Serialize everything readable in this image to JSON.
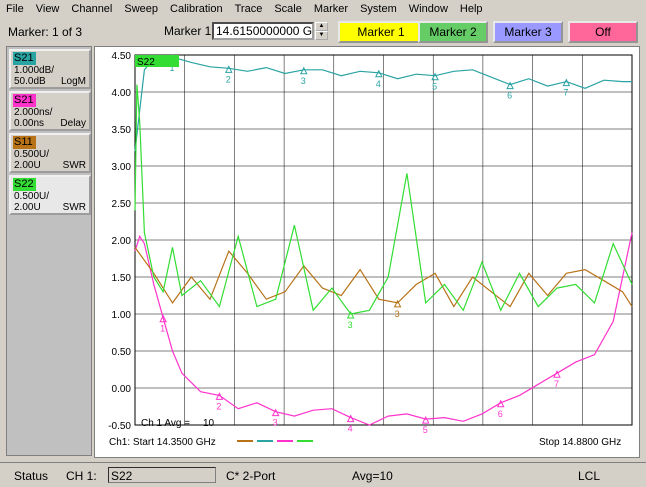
{
  "menu": [
    "File",
    "View",
    "Channel",
    "Sweep",
    "Calibration",
    "Trace",
    "Scale",
    "Marker",
    "System",
    "Window",
    "Help"
  ],
  "toolbar": {
    "marker_count": "Marker: 1 of 3",
    "marker_label": "Marker 1",
    "frequency": "14.6150000000 GHz",
    "buttons": [
      {
        "label": "Marker 1",
        "color": "#ffff00"
      },
      {
        "label": "Marker 2",
        "color": "#66cc66"
      },
      {
        "label": "Marker 3",
        "color": "#9999ff"
      },
      {
        "label": "Off",
        "color": "#ff6699"
      }
    ]
  },
  "traces": [
    {
      "name": "S21",
      "line1": "1.000dB/",
      "line2": "50.0dB",
      "format": "LogM",
      "color": "#2aa3a3"
    },
    {
      "name": "S21",
      "line1": "2.000ns/",
      "line2": "0.00ns",
      "format": "Delay",
      "color": "#ff33cc"
    },
    {
      "name": "S11",
      "line1": "0.500U/",
      "line2": "2.00U",
      "format": "SWR",
      "color": "#b87318"
    },
    {
      "name": "S22",
      "line1": "0.500U/",
      "line2": "2.00U",
      "format": "SWR",
      "color": "#33dd33"
    }
  ],
  "chart": {
    "y_ticks": [
      "4.50",
      "4.00",
      "3.50",
      "3.00",
      "2.50",
      "2.00",
      "1.50",
      "1.00",
      "0.50",
      "0.00",
      "-0.50"
    ],
    "active_trace_label": "S22",
    "avg_label": "Ch 1 Avg =",
    "avg_value": "10",
    "start_label": "Ch1: Start  14.3500 GHz",
    "stop_label": "Stop  14.8800 GHz",
    "legend_colors": [
      "#b87318",
      "#2aa3a3",
      "#ff33cc",
      "#33dd33"
    ]
  },
  "chart_data": {
    "type": "line",
    "xlabel": "",
    "ylabel": "",
    "xlim": [
      14.35,
      14.88
    ],
    "ylim": [
      -0.5,
      4.5
    ],
    "grid": true,
    "series": [
      {
        "name": "S21 LogM",
        "color": "#2aa3a3",
        "x": [
          14.35,
          14.36,
          14.37,
          14.38,
          14.39,
          14.41,
          14.43,
          14.45,
          14.47,
          14.49,
          14.51,
          14.53,
          14.55,
          14.57,
          14.59,
          14.61,
          14.63,
          14.65,
          14.67,
          14.69,
          14.71,
          14.73,
          14.75,
          14.77,
          14.79,
          14.81,
          14.83,
          14.85,
          14.87,
          14.88
        ],
        "y": [
          3.2,
          4.3,
          4.45,
          4.38,
          4.47,
          4.4,
          4.34,
          4.32,
          4.28,
          4.33,
          4.25,
          4.3,
          4.3,
          4.22,
          4.28,
          4.26,
          4.18,
          4.24,
          4.22,
          4.28,
          4.3,
          4.2,
          4.1,
          4.18,
          4.08,
          4.14,
          4.05,
          4.16,
          4.14,
          4.14
        ]
      },
      {
        "name": "S21 Delay",
        "color": "#ff33cc",
        "x": [
          14.35,
          14.355,
          14.36,
          14.37,
          14.38,
          14.39,
          14.4,
          14.42,
          14.44,
          14.46,
          14.48,
          14.5,
          14.52,
          14.54,
          14.56,
          14.58,
          14.6,
          14.62,
          14.64,
          14.66,
          14.68,
          14.7,
          14.72,
          14.74,
          14.76,
          14.78,
          14.8,
          14.82,
          14.84,
          14.86,
          14.88
        ],
        "y": [
          1.85,
          2.05,
          1.95,
          1.4,
          0.95,
          0.5,
          0.2,
          -0.05,
          -0.1,
          -0.28,
          -0.2,
          -0.32,
          -0.38,
          -0.3,
          -0.28,
          -0.4,
          -0.5,
          -0.38,
          -0.35,
          -0.42,
          -0.4,
          -0.45,
          -0.35,
          -0.2,
          -0.1,
          0.05,
          0.2,
          0.35,
          0.45,
          0.9,
          2.1
        ]
      },
      {
        "name": "S11 SWR",
        "color": "#b87318",
        "x": [
          14.35,
          14.37,
          14.39,
          14.41,
          14.43,
          14.45,
          14.47,
          14.49,
          14.51,
          14.53,
          14.55,
          14.57,
          14.59,
          14.61,
          14.63,
          14.65,
          14.67,
          14.69,
          14.71,
          14.73,
          14.75,
          14.77,
          14.79,
          14.81,
          14.83,
          14.85,
          14.87,
          14.88
        ],
        "y": [
          1.9,
          1.55,
          1.15,
          1.5,
          1.2,
          1.85,
          1.55,
          1.2,
          1.3,
          1.65,
          1.35,
          1.25,
          1.6,
          1.2,
          1.15,
          1.4,
          1.55,
          1.1,
          1.5,
          1.3,
          1.1,
          1.55,
          1.25,
          1.55,
          1.6,
          1.45,
          1.3,
          1.1
        ]
      },
      {
        "name": "S22 SWR",
        "color": "#33dd33",
        "x": [
          14.35,
          14.352,
          14.355,
          14.36,
          14.37,
          14.38,
          14.39,
          14.4,
          14.42,
          14.44,
          14.46,
          14.48,
          14.5,
          14.52,
          14.54,
          14.56,
          14.58,
          14.6,
          14.62,
          14.64,
          14.66,
          14.68,
          14.7,
          14.72,
          14.74,
          14.76,
          14.78,
          14.8,
          14.82,
          14.84,
          14.86,
          14.88
        ],
        "y": [
          2.4,
          4.1,
          3.6,
          2.1,
          1.5,
          1.3,
          1.9,
          1.25,
          1.45,
          1.1,
          2.05,
          1.1,
          1.2,
          2.2,
          1.05,
          1.35,
          1.0,
          1.05,
          1.5,
          2.9,
          1.15,
          1.4,
          1.05,
          1.7,
          1.05,
          1.55,
          1.1,
          1.35,
          1.4,
          1.15,
          1.95,
          1.4
        ]
      }
    ],
    "markers": [
      {
        "series": "S21 LogM",
        "labels": [
          "1",
          "2",
          "3",
          "4",
          "5",
          "6",
          "7"
        ]
      },
      {
        "series": "S21 Delay",
        "labels": [
          "1",
          "2",
          "3",
          "4",
          "5",
          "6",
          "7"
        ]
      },
      {
        "series": "S11 SWR",
        "labels": [
          "3"
        ]
      },
      {
        "series": "S22 SWR",
        "labels": [
          "3"
        ]
      }
    ]
  },
  "status": {
    "status_label": "Status",
    "channel": "CH 1:",
    "trace": "S22",
    "cal": "C* 2-Port",
    "avg": "Avg=10",
    "mode": "LCL"
  }
}
